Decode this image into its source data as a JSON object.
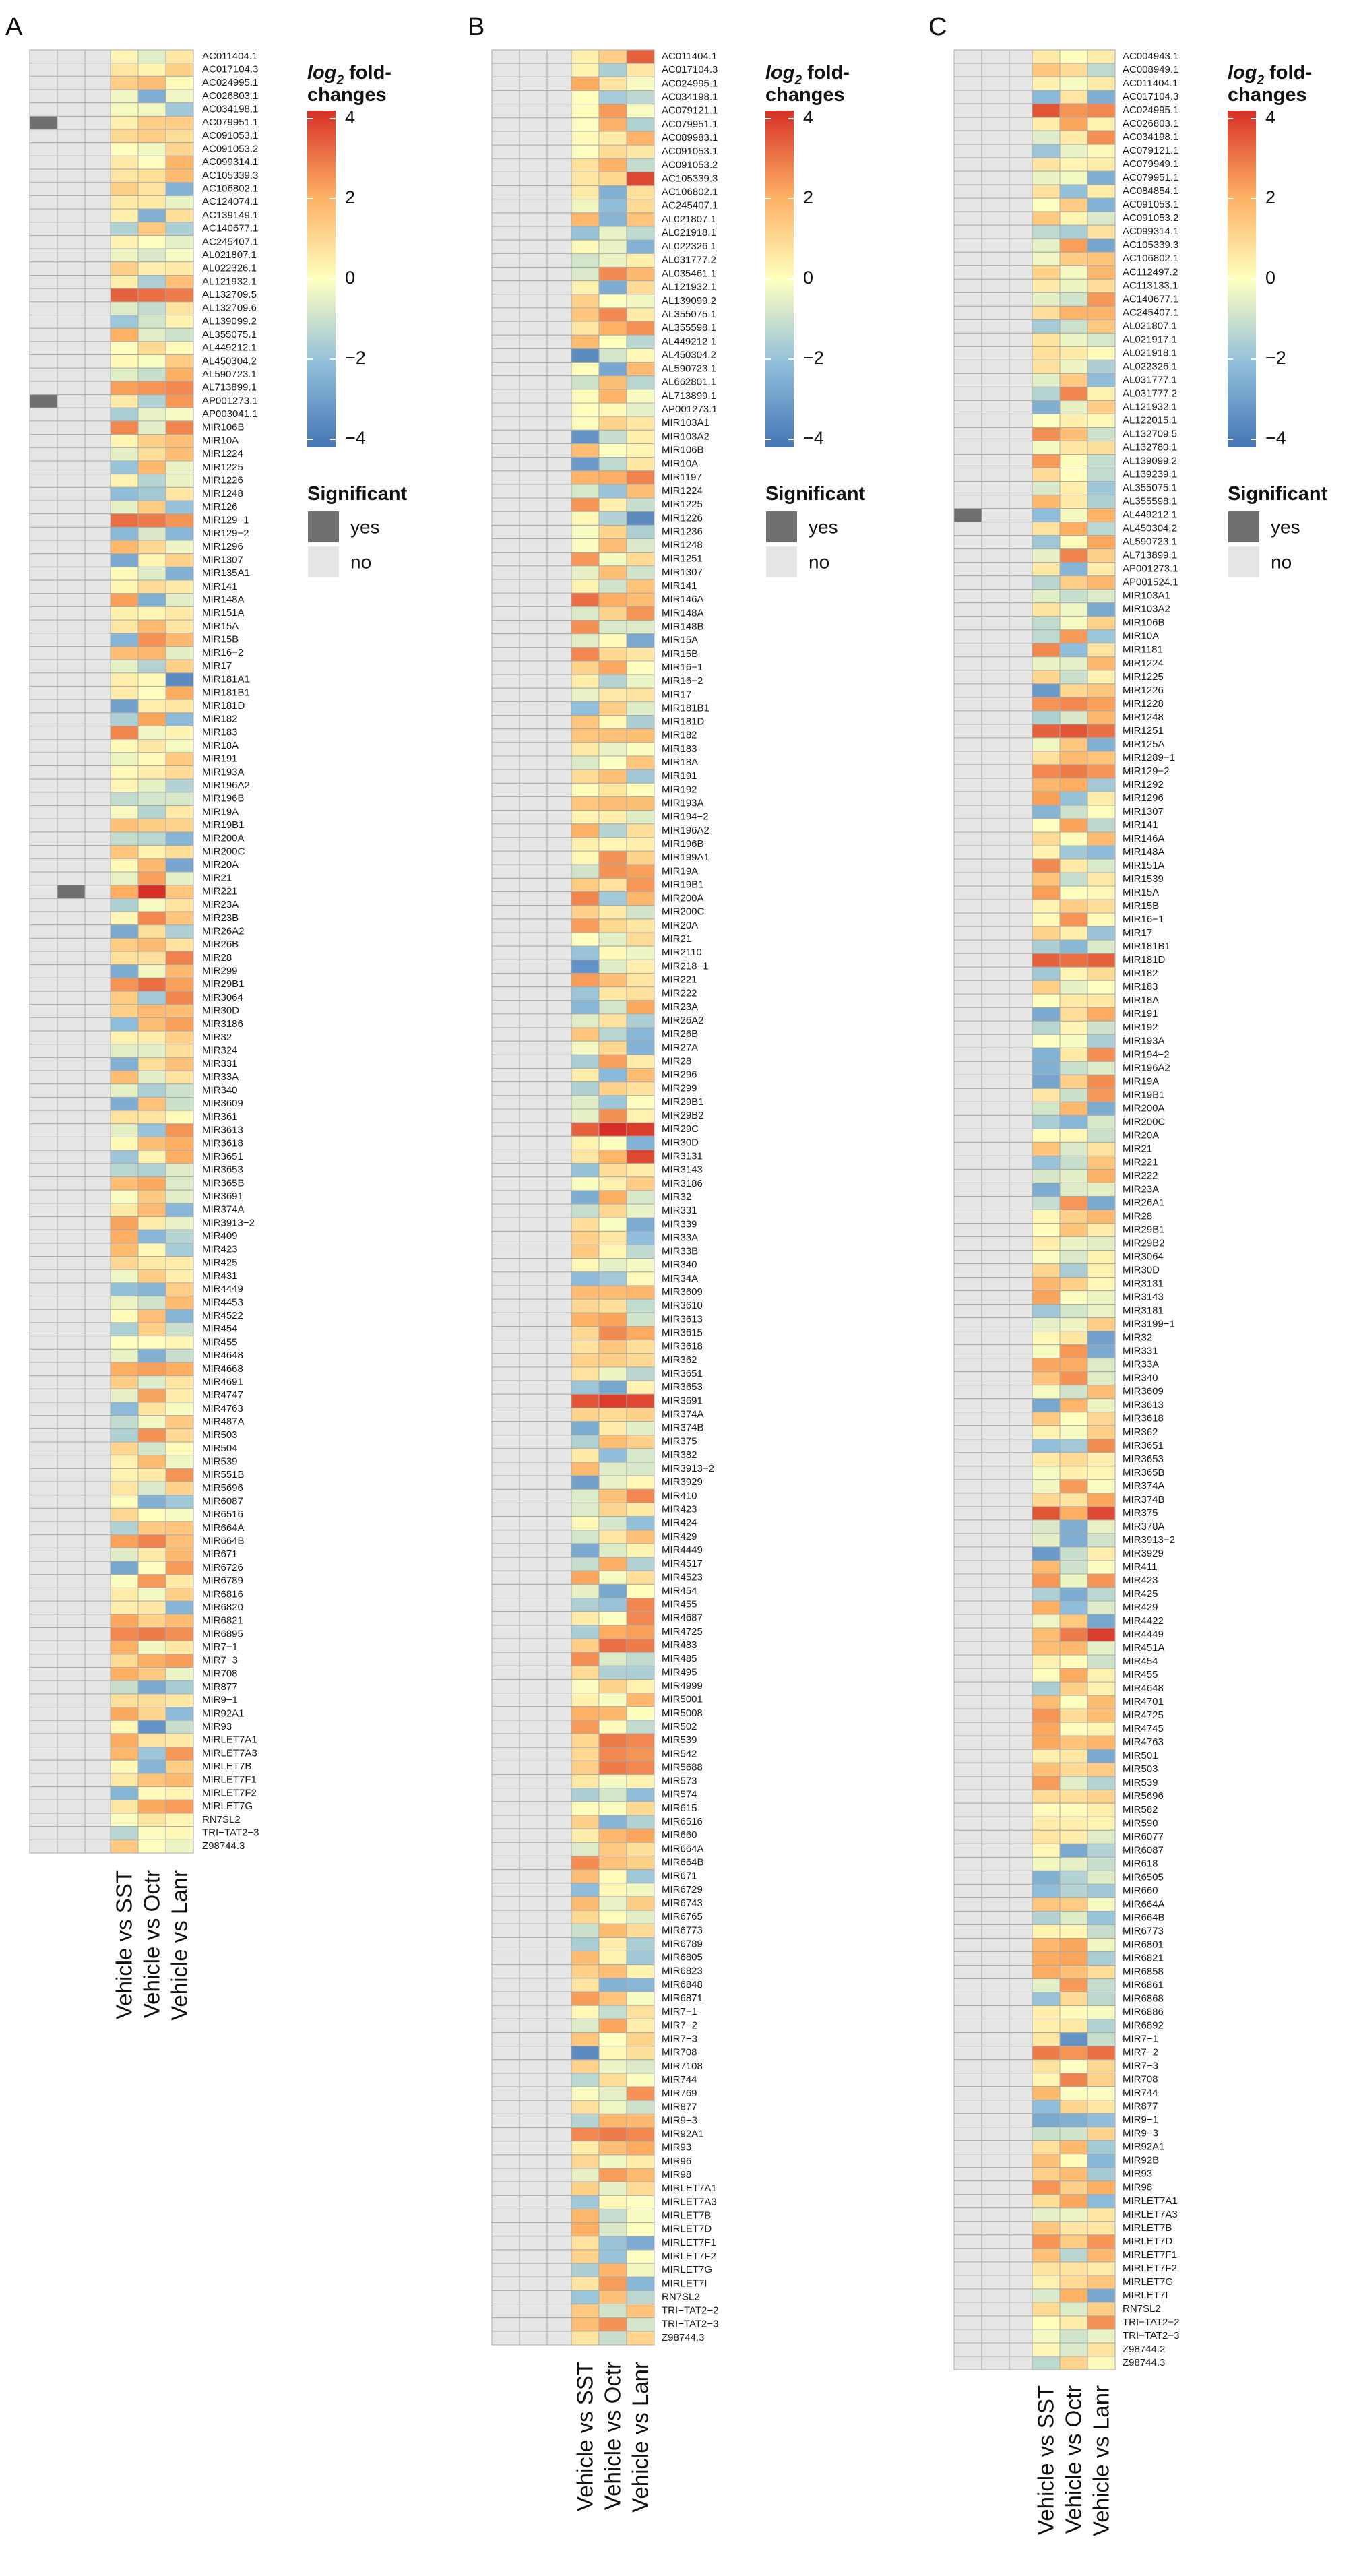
{
  "legend": {
    "fc_title_main": "log",
    "fc_title_sub": "2",
    "fc_title_rest": " fold-",
    "fc_title_line2": "changes",
    "ticks": [
      4,
      2,
      0,
      -2,
      -4
    ],
    "tick_labels": [
      "4",
      "2",
      "0",
      "−2",
      "−4"
    ],
    "sig_title": "Significant",
    "sig_yes": "yes",
    "sig_no": "no"
  },
  "colors": {
    "scale_low": "#4575b4",
    "scale_midlow": "#91bfdb",
    "scale_mid": "#ffffbf",
    "scale_midhigh": "#fdae61",
    "scale_high": "#d73027",
    "sig_yes": "#707070",
    "sig_no": "#e5e5e5",
    "grid": "#aaaaaa"
  },
  "chart_data": [
    {
      "type": "heatmap",
      "panel": "A",
      "columns": [
        "Vehicle vs SST",
        "Vehicle vs Octr",
        "Vehicle vs Lanr"
      ],
      "color_range": [
        -4,
        4
      ],
      "rows": [
        "AC011404.1",
        "AC017104.3",
        "AC024995.1",
        "AC026803.1",
        "AC034198.1",
        "AC079951.1",
        "AC091053.1",
        "AC091053.2",
        "AC099314.1",
        "AC105339.3",
        "AC106802.1",
        "AC124074.1",
        "AC139149.1",
        "AC140677.1",
        "AC245407.1",
        "AL021807.1",
        "AL022326.1",
        "AL121932.1",
        "AL132709.5",
        "AL132709.6",
        "AL139099.2",
        "AL355075.1",
        "AL449212.1",
        "AL450304.2",
        "AL590723.1",
        "AL713899.1",
        "AP001273.1",
        "AP003041.1",
        "MIR106B",
        "MIR10A",
        "MIR1224",
        "MIR1225",
        "MIR1226",
        "MIR1248",
        "MIR126",
        "MIR129−1",
        "MIR129−2",
        "MIR1296",
        "MIR1307",
        "MIR135A1",
        "MIR141",
        "MIR148A",
        "MIR151A",
        "MIR15A",
        "MIR15B",
        "MIR16−2",
        "MIR17",
        "MIR181A1",
        "MIR181B1",
        "MIR181D",
        "MIR182",
        "MIR183",
        "MIR18A",
        "MIR191",
        "MIR193A",
        "MIR196A2",
        "MIR196B",
        "MIR19A",
        "MIR19B1",
        "MIR200A",
        "MIR200C",
        "MIR20A",
        "MIR21",
        "MIR221",
        "MIR23A",
        "MIR23B",
        "MIR26A2",
        "MIR26B",
        "MIR28",
        "MIR299",
        "MIR29B1",
        "MIR3064",
        "MIR30D",
        "MIR3186",
        "MIR32",
        "MIR324",
        "MIR331",
        "MIR33A",
        "MIR340",
        "MIR3609",
        "MIR361",
        "MIR3613",
        "MIR3618",
        "MIR3651",
        "MIR3653",
        "MIR365B",
        "MIR3691",
        "MIR374A",
        "MIR3913−2",
        "MIR409",
        "MIR423",
        "MIR425",
        "MIR431",
        "MIR4449",
        "MIR4453",
        "MIR4522",
        "MIR454",
        "MIR455",
        "MIR4648",
        "MIR4668",
        "MIR4691",
        "MIR4747",
        "MIR4763",
        "MIR487A",
        "MIR503",
        "MIR504",
        "MIR539",
        "MIR551B",
        "MIR5696",
        "MIR6087",
        "MIR6516",
        "MIR664A",
        "MIR664B",
        "MIR671",
        "MIR6726",
        "MIR6789",
        "MIR6816",
        "MIR6820",
        "MIR6821",
        "MIR6895",
        "MIR7−1",
        "MIR7−3",
        "MIR708",
        "MIR877",
        "MIR9−1",
        "MIR92A1",
        "MIR93",
        "MIRLET7A1",
        "MIRLET7A3",
        "MIRLET7B",
        "MIRLET7F1",
        "MIRLET7F2",
        "MIRLET7G",
        "RN7SL2",
        "TRI−TAT2−3",
        "Z98744.3"
      ],
      "significant": {
        "AC079951.1": [
          1,
          0,
          0
        ],
        "AP001273.1": [
          1,
          0,
          0
        ],
        "MIR221": [
          0,
          1,
          0
        ]
      },
      "strong_values": {
        "AL132709.5": [
          3.2,
          3.0,
          2.8
        ],
        "MIR129−1": [
          3.0,
          2.8,
          2.4
        ],
        "MIR221": [
          2.0,
          4.0,
          1.4
        ],
        "MIR6895": [
          2.6,
          2.8,
          2.5
        ],
        "MIR29B1": [
          2.4,
          3.0,
          2.2
        ],
        "MIR4668": [
          2.0,
          2.2,
          2.0
        ],
        "AL713899.1": [
          2.2,
          2.4,
          2.6
        ],
        "MIR181A1": [
          0.4,
          0.2,
          -3.4
        ],
        "MIR93": [
          0.2,
          -3.2,
          -1.0
        ],
        "MIR181D": [
          -2.8,
          0.4,
          0.6
        ],
        "MIR877": [
          -1.0,
          -2.6,
          -1.6
        ],
        "AC139149.1": [
          0.4,
          -2.4,
          0.8
        ]
      },
      "seed": 11
    },
    {
      "type": "heatmap",
      "panel": "B",
      "columns": [
        "Vehicle vs SST",
        "Vehicle vs Octr",
        "Vehicle vs Lanr"
      ],
      "color_range": [
        -4,
        4
      ],
      "rows": [
        "AC011404.1",
        "AC017104.3",
        "AC024995.1",
        "AC034198.1",
        "AC079121.1",
        "AC079951.1",
        "AC089983.1",
        "AC091053.1",
        "AC091053.2",
        "AC105339.3",
        "AC106802.1",
        "AC245407.1",
        "AL021807.1",
        "AL021918.1",
        "AL022326.1",
        "AL031777.2",
        "AL035461.1",
        "AL121932.1",
        "AL139099.2",
        "AL355075.1",
        "AL355598.1",
        "AL449212.1",
        "AL450304.2",
        "AL590723.1",
        "AL662801.1",
        "AL713899.1",
        "AP001273.1",
        "MIR103A1",
        "MIR103A2",
        "MIR106B",
        "MIR10A",
        "MIR1197",
        "MIR1224",
        "MIR1225",
        "MIR1226",
        "MIR1236",
        "MIR1248",
        "MIR1251",
        "MIR1307",
        "MIR141",
        "MIR146A",
        "MIR148A",
        "MIR148B",
        "MIR15A",
        "MIR15B",
        "MIR16−1",
        "MIR16−2",
        "MIR17",
        "MIR181B1",
        "MIR181D",
        "MIR182",
        "MIR183",
        "MIR18A",
        "MIR191",
        "MIR192",
        "MIR193A",
        "MIR194−2",
        "MIR196A2",
        "MIR196B",
        "MIR199A1",
        "MIR19A",
        "MIR19B1",
        "MIR200A",
        "MIR200C",
        "MIR20A",
        "MIR21",
        "MIR2110",
        "MIR218−1",
        "MIR221",
        "MIR222",
        "MIR23A",
        "MIR26A2",
        "MIR26B",
        "MIR27A",
        "MIR28",
        "MIR296",
        "MIR299",
        "MIR29B1",
        "MIR29B2",
        "MIR29C",
        "MIR30D",
        "MIR3131",
        "MIR3143",
        "MIR3186",
        "MIR32",
        "MIR331",
        "MIR339",
        "MIR33A",
        "MIR33B",
        "MIR340",
        "MIR34A",
        "MIR3609",
        "MIR3610",
        "MIR3613",
        "MIR3615",
        "MIR3618",
        "MIR362",
        "MIR3651",
        "MIR3653",
        "MIR3691",
        "MIR374A",
        "MIR374B",
        "MIR375",
        "MIR382",
        "MIR3913−2",
        "MIR3929",
        "MIR410",
        "MIR423",
        "MIR424",
        "MIR429",
        "MIR4449",
        "MIR4517",
        "MIR4523",
        "MIR454",
        "MIR455",
        "MIR4687",
        "MIR4725",
        "MIR483",
        "MIR485",
        "MIR495",
        "MIR4999",
        "MIR5001",
        "MIR5008",
        "MIR502",
        "MIR539",
        "MIR542",
        "MIR5688",
        "MIR573",
        "MIR574",
        "MIR615",
        "MIR6516",
        "MIR660",
        "MIR664A",
        "MIR664B",
        "MIR671",
        "MIR6729",
        "MIR6743",
        "MIR6765",
        "MIR6773",
        "MIR6789",
        "MIR6805",
        "MIR6823",
        "MIR6848",
        "MIR6871",
        "MIR7−1",
        "MIR7−2",
        "MIR7−3",
        "MIR708",
        "MIR7108",
        "MIR744",
        "MIR769",
        "MIR877",
        "MIR9−3",
        "MIR92A1",
        "MIR93",
        "MIR96",
        "MIR98",
        "MIRLET7A1",
        "MIRLET7A3",
        "MIRLET7B",
        "MIRLET7D",
        "MIRLET7F1",
        "MIRLET7F2",
        "MIRLET7G",
        "MIRLET7I",
        "RN7SL2",
        "TRI−TAT2−2",
        "TRI−TAT2−3",
        "Z98744.3"
      ],
      "significant": {},
      "strong_values": {
        "AC011404.1": [
          0.4,
          1.2,
          3.2
        ],
        "AC105339.3": [
          0.6,
          1.0,
          3.6
        ],
        "MIR29C": [
          3.2,
          4.0,
          3.8
        ],
        "MIR3691": [
          3.4,
          3.8,
          3.6
        ],
        "MIR3131": [
          0.6,
          1.8,
          3.6
        ],
        "MIR146A": [
          3.0,
          2.0,
          1.6
        ],
        "MIR483": [
          1.2,
          3.0,
          2.8
        ],
        "MIR15B": [
          2.6,
          1.0,
          0.6
        ],
        "MIR1225": [
          2.4,
          0.4,
          -1.0
        ],
        "MIR1226": [
          0.2,
          -1.4,
          -3.4
        ],
        "AL450304.2": [
          -3.4,
          -0.8,
          0.2
        ],
        "MIR103A2": [
          -3.2,
          -1.0,
          0.4
        ],
        "MIR10A": [
          -3.0,
          -1.2,
          0.6
        ],
        "MIR218−1": [
          -3.2,
          -0.6,
          0.4
        ],
        "MIR708": [
          -3.4,
          0.2,
          0.8
        ],
        "MIR3929": [
          -2.8,
          -0.4,
          0.2
        ],
        "MIR539": [
          1.0,
          2.8,
          2.6
        ],
        "MIR542": [
          1.0,
          2.6,
          2.4
        ],
        "MIR5688": [
          1.2,
          2.8,
          2.6
        ],
        "MIR92A1": [
          2.6,
          2.8,
          2.6
        ]
      },
      "seed": 23
    },
    {
      "type": "heatmap",
      "panel": "C",
      "columns": [
        "Vehicle vs SST",
        "Vehicle vs Octr",
        "Vehicle vs Lanr"
      ],
      "color_range": [
        -4,
        4
      ],
      "rows": [
        "AC004943.1",
        "AC008949.1",
        "AC011404.1",
        "AC017104.3",
        "AC024995.1",
        "AC026803.1",
        "AC034198.1",
        "AC079121.1",
        "AC079949.1",
        "AC079951.1",
        "AC084854.1",
        "AC091053.1",
        "AC091053.2",
        "AC099314.1",
        "AC105339.3",
        "AC106802.1",
        "AC112497.2",
        "AC113133.1",
        "AC140677.1",
        "AC245407.1",
        "AL021807.1",
        "AL021917.1",
        "AL021918.1",
        "AL022326.1",
        "AL031777.1",
        "AL031777.2",
        "AL121932.1",
        "AL122015.1",
        "AL132709.5",
        "AL132780.1",
        "AL139099.2",
        "AL139239.1",
        "AL355075.1",
        "AL355598.1",
        "AL449212.1",
        "AL450304.2",
        "AL590723.1",
        "AL713899.1",
        "AP001273.1",
        "AP001524.1",
        "MIR103A1",
        "MIR103A2",
        "MIR106B",
        "MIR10A",
        "MIR1181",
        "MIR1224",
        "MIR1225",
        "MIR1226",
        "MIR1228",
        "MIR1248",
        "MIR1251",
        "MIR125A",
        "MIR1289−1",
        "MIR129−2",
        "MIR1292",
        "MIR1296",
        "MIR1307",
        "MIR141",
        "MIR146A",
        "MIR148A",
        "MIR151A",
        "MIR1539",
        "MIR15A",
        "MIR15B",
        "MIR16−1",
        "MIR17",
        "MIR181B1",
        "MIR181D",
        "MIR182",
        "MIR183",
        "MIR18A",
        "MIR191",
        "MIR192",
        "MIR193A",
        "MIR194−2",
        "MIR196A2",
        "MIR19A",
        "MIR19B1",
        "MIR200A",
        "MIR200C",
        "MIR20A",
        "MIR21",
        "MIR221",
        "MIR222",
        "MIR23A",
        "MIR26A1",
        "MIR28",
        "MIR29B1",
        "MIR29B2",
        "MIR3064",
        "MIR30D",
        "MIR3131",
        "MIR3143",
        "MIR3181",
        "MIR3199−1",
        "MIR32",
        "MIR331",
        "MIR33A",
        "MIR340",
        "MIR3609",
        "MIR3613",
        "MIR3618",
        "MIR362",
        "MIR3651",
        "MIR3653",
        "MIR365B",
        "MIR374A",
        "MIR374B",
        "MIR375",
        "MIR378A",
        "MIR3913−2",
        "MIR3929",
        "MIR411",
        "MIR423",
        "MIR425",
        "MIR429",
        "MIR4422",
        "MIR4449",
        "MIR451A",
        "MIR454",
        "MIR455",
        "MIR4648",
        "MIR4701",
        "MIR4725",
        "MIR4745",
        "MIR4763",
        "MIR501",
        "MIR503",
        "MIR539",
        "MIR5696",
        "MIR582",
        "MIR590",
        "MIR6077",
        "MIR6087",
        "MIR618",
        "MIR6505",
        "MIR660",
        "MIR664A",
        "MIR664B",
        "MIR6773",
        "MIR6801",
        "MIR6821",
        "MIR6858",
        "MIR6861",
        "MIR6868",
        "MIR6886",
        "MIR6892",
        "MIR7−1",
        "MIR7−2",
        "MIR7−3",
        "MIR708",
        "MIR744",
        "MIR877",
        "MIR9−1",
        "MIR9−3",
        "MIR92A1",
        "MIR92B",
        "MIR93",
        "MIR98",
        "MIRLET7A1",
        "MIRLET7A3",
        "MIRLET7B",
        "MIRLET7D",
        "MIRLET7F1",
        "MIRLET7F2",
        "MIRLET7G",
        "MIRLET7I",
        "RN7SL2",
        "TRI−TAT2−2",
        "TRI−TAT2−3",
        "Z98744.2",
        "Z98744.3"
      ],
      "significant": {
        "AL449212.1": [
          1,
          0,
          0
        ]
      },
      "strong_values": {
        "AC024995.1": [
          3.4,
          2.4,
          2.6
        ],
        "MIR1251": [
          3.2,
          3.4,
          3.0
        ],
        "MIR181D": [
          3.2,
          3.0,
          3.2
        ],
        "MIR375": [
          3.4,
          2.0,
          3.6
        ],
        "MIR4449": [
          1.6,
          2.8,
          3.8
        ],
        "MIR7−2": [
          2.8,
          2.4,
          3.0
        ],
        "MIR129−2": [
          2.6,
          2.8,
          2.4
        ],
        "MIR1228": [
          2.4,
          2.6,
          2.2
        ],
        "MIR1226": [
          -3.0,
          1.0,
          1.4
        ],
        "MIR3929": [
          -3.0,
          -1.0,
          0.4
        ],
        "MIR6087": [
          0.2,
          -2.6,
          -1.4
        ],
        "MIR7−1": [
          0.6,
          -3.2,
          -1.0
        ],
        "MIR6505": [
          -2.4,
          -1.4,
          -0.6
        ],
        "MIR9−1": [
          -2.6,
          -2.4,
          -2.0
        ],
        "MIR32": [
          0.2,
          0.6,
          -2.8
        ],
        "MIR501": [
          0.4,
          0.6,
          -2.6
        ],
        "AC079121.1": [
          -1.8,
          -0.4,
          0.2
        ]
      },
      "seed": 37
    }
  ]
}
